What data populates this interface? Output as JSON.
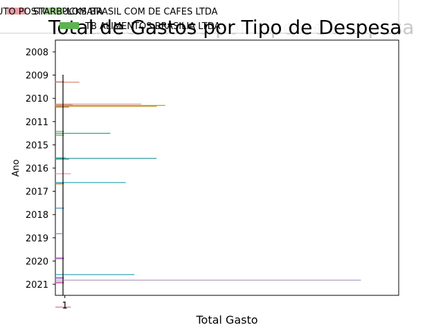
{
  "chart_data": {
    "type": "bar",
    "orientation": "horizontal",
    "title": "Total de Gastos por Tipo de Despesa",
    "xlabel": "Total Gasto",
    "ylabel": "Ano",
    "x_ticks": [
      "1"
    ],
    "xlim": [
      0,
      20
    ],
    "grid": false,
    "legend_placement": "top",
    "categories": [
      "2008",
      "2009",
      "2010",
      "2011",
      "2015",
      "2016",
      "2017",
      "2018",
      "2019",
      "2020",
      "2021"
    ],
    "legend": [
      {
        "name": "AUTO POSTO DIPLOMATA",
        "color": "#e8a0a8"
      },
      {
        "name": "STARBUCKS BRASIL COM DE CAFES LTDA",
        "color": "#9fcf8f"
      },
      {
        "name": "TB ALIMENTOS BRASILIA LTDA",
        "color": "#5db34f"
      }
    ],
    "bars": [
      {
        "category": "2009",
        "offset": -0.36,
        "value": 0.5,
        "color": "#d98b7a"
      },
      {
        "category": "2009",
        "offset": -0.34,
        "value": 1.4,
        "color": "#d98b7a"
      },
      {
        "category": "2010",
        "offset": -0.4,
        "value": 5.0,
        "color": "#e8a0a8"
      },
      {
        "category": "2010",
        "offset": -0.38,
        "value": 1.0,
        "color": "#d98b7a"
      },
      {
        "category": "2010",
        "offset": -0.34,
        "value": 6.4,
        "color": "#b5a032"
      },
      {
        "category": "2010",
        "offset": -0.3,
        "value": 5.9,
        "color": "#c49a3a"
      },
      {
        "category": "2010",
        "offset": -0.27,
        "value": 0.8,
        "color": "#b07050"
      },
      {
        "category": "2011",
        "offset": -0.22,
        "value": 0.5,
        "color": "#5db34f"
      },
      {
        "category": "2011",
        "offset": -0.14,
        "value": 3.2,
        "color": "#3aa08a"
      },
      {
        "category": "2011",
        "offset": -0.06,
        "value": 0.5,
        "color": "#6ab050"
      },
      {
        "category": "2015",
        "offset": -0.08,
        "value": 0.6,
        "color": "#3a9e6a"
      },
      {
        "category": "2015",
        "offset": -0.06,
        "value": 5.9,
        "color": "#33a0a0"
      },
      {
        "category": "2015",
        "offset": -0.03,
        "value": 0.8,
        "color": "#3aa08a"
      },
      {
        "category": "2016",
        "offset": -0.4,
        "value": 0.9,
        "color": "#e8a0a8"
      },
      {
        "category": "2016",
        "offset": -0.02,
        "value": 4.1,
        "color": "#3aa8b0"
      },
      {
        "category": "2016",
        "offset": 0.02,
        "value": 0.5,
        "color": "#4aa0c0"
      },
      {
        "category": "2016",
        "offset": 0.04,
        "value": 0.4,
        "color": "#e08a50"
      },
      {
        "category": "2017",
        "offset": 0.08,
        "value": 0.5,
        "color": "#4a90c8"
      },
      {
        "category": "2018",
        "offset": 0.18,
        "value": 0.4,
        "color": "#8a8ad8"
      },
      {
        "category": "2019",
        "offset": 0.22,
        "value": 0.5,
        "color": "#b07ad0"
      },
      {
        "category": "2019",
        "offset": 0.26,
        "value": 0.5,
        "color": "#c070c8"
      },
      {
        "category": "2020",
        "offset": -0.06,
        "value": 4.6,
        "color": "#3aa8b0"
      },
      {
        "category": "2020",
        "offset": 0.06,
        "value": 0.5,
        "color": "#8a8ad8"
      },
      {
        "category": "2020",
        "offset": 0.1,
        "value": 0.5,
        "color": "#b07ad0"
      },
      {
        "category": "2020",
        "offset": 0.18,
        "value": 17.8,
        "color": "#b0a0c0"
      },
      {
        "category": "2020",
        "offset": 0.26,
        "value": 0.5,
        "color": "#e070a8"
      },
      {
        "category": "2020",
        "offset": 0.3,
        "value": 0.5,
        "color": "#d070c0"
      },
      {
        "category": "2021",
        "offset": 0.34,
        "value": 0.9,
        "color": "#e070a8"
      }
    ]
  }
}
